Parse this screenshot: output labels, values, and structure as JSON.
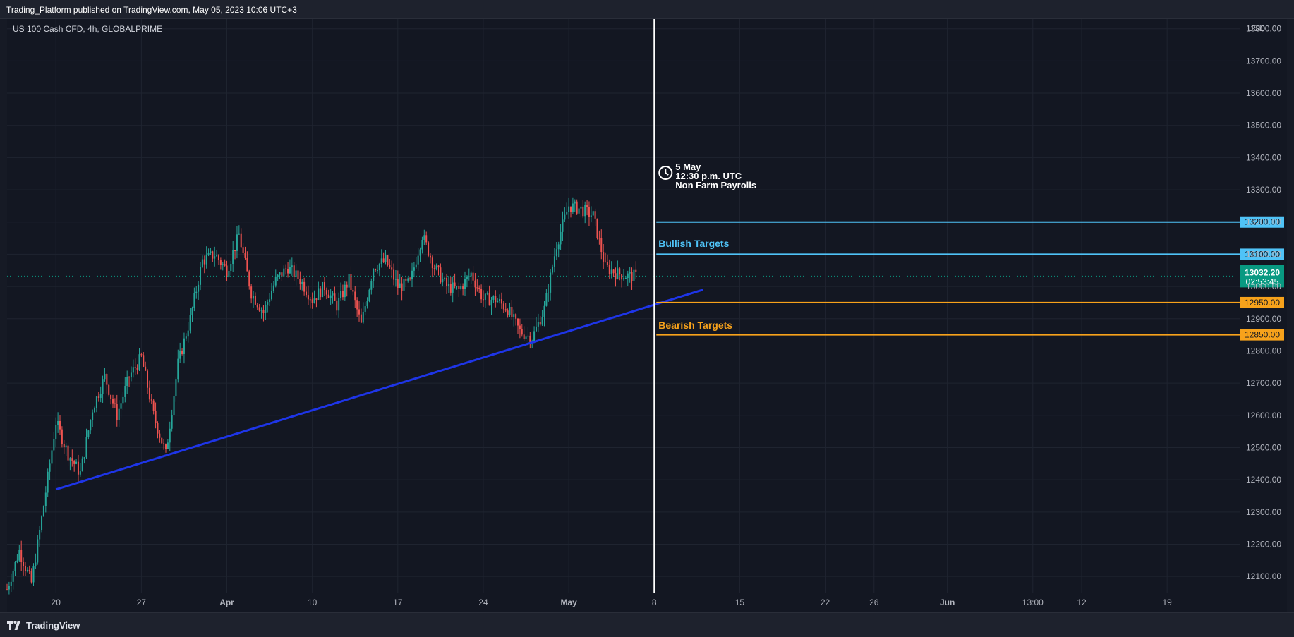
{
  "header": {
    "publisher_line": "Trading_Platform published on TradingView.com, May 05, 2023 10:06 UTC+3"
  },
  "footer": {
    "brand": "TradingView",
    "brand_icon": "tradingview-logo-icon"
  },
  "colors": {
    "background": "#131722",
    "up": "#26a69a",
    "down": "#ef5350",
    "trendline": "#1e35e8",
    "bullish": "#4fc3f7",
    "bearish": "#f7a21b",
    "last_price": "#089981",
    "event_line": "#ffffff"
  },
  "chart_data": {
    "type": "candlestick",
    "symbol": "US 100 Cash CFD, 4h, GLOBALPRIME",
    "currency": "USD",
    "y_axis": {
      "ticks": [
        12100,
        12200,
        12300,
        12400,
        12500,
        12600,
        12700,
        12800,
        12900,
        13000,
        13100,
        13200,
        13300,
        13400,
        13500,
        13600,
        13700,
        13800
      ],
      "tick_labels": [
        "12100.00",
        "12200.00",
        "12300.00",
        "12400.00",
        "12500.00",
        "12600.00",
        "12700.00",
        "12800.00",
        "12900.00",
        "13000.00",
        "13100.00",
        "13200.00",
        "13300.00",
        "13400.00",
        "13500.00",
        "13600.00",
        "13700.00",
        "13800.00"
      ],
      "range": [
        12050,
        13830
      ]
    },
    "x_axis": {
      "tick_labels": [
        "20",
        "27",
        "Apr",
        "10",
        "17",
        "24",
        "May",
        "8",
        "15",
        "22",
        "26",
        "Jun",
        "13:00",
        "12",
        "19"
      ],
      "bold_labels": [
        "Apr",
        "May",
        "Jun"
      ],
      "range_days": [
        "2023-03-16",
        "2023-06-25"
      ]
    },
    "ohlc_path": [
      [
        "2023-03-16",
        12060
      ],
      [
        "2023-03-17",
        12180
      ],
      [
        "2023-03-18",
        12080
      ],
      [
        "2023-03-19",
        12320
      ],
      [
        "2023-03-20",
        12580
      ],
      [
        "2023-03-21",
        12480
      ],
      [
        "2023-03-22",
        12420
      ],
      [
        "2023-03-23",
        12620
      ],
      [
        "2023-03-24",
        12720
      ],
      [
        "2023-03-25",
        12600
      ],
      [
        "2023-03-26",
        12720
      ],
      [
        "2023-03-27",
        12780
      ],
      [
        "2023-03-28",
        12600
      ],
      [
        "2023-03-29",
        12480
      ],
      [
        "2023-03-30",
        12760
      ],
      [
        "2023-03-31",
        12900
      ],
      [
        "2023-04-01",
        13080
      ],
      [
        "2023-04-02",
        13100
      ],
      [
        "2023-04-03",
        13050
      ],
      [
        "2023-04-04",
        13160
      ],
      [
        "2023-04-05",
        12980
      ],
      [
        "2023-04-06",
        12920
      ],
      [
        "2023-04-07",
        13020
      ],
      [
        "2023-04-08",
        13060
      ],
      [
        "2023-04-09",
        13020
      ],
      [
        "2023-04-10",
        12960
      ],
      [
        "2023-04-11",
        13000
      ],
      [
        "2023-04-12",
        12940
      ],
      [
        "2023-04-13",
        13020
      ],
      [
        "2023-04-14",
        12880
      ],
      [
        "2023-04-15",
        13060
      ],
      [
        "2023-04-16",
        13080
      ],
      [
        "2023-04-17",
        13000
      ],
      [
        "2023-04-18",
        13010
      ],
      [
        "2023-04-19",
        13160
      ],
      [
        "2023-04-20",
        13060
      ],
      [
        "2023-04-21",
        13000
      ],
      [
        "2023-04-22",
        12990
      ],
      [
        "2023-04-23",
        13040
      ],
      [
        "2023-04-24",
        12960
      ],
      [
        "2023-04-25",
        12960
      ],
      [
        "2023-04-26",
        12930
      ],
      [
        "2023-04-27",
        12860
      ],
      [
        "2023-04-28",
        12840
      ],
      [
        "2023-04-29",
        12930
      ],
      [
        "2023-04-30",
        13130
      ],
      [
        "2023-05-01",
        13250
      ],
      [
        "2023-05-02",
        13240
      ],
      [
        "2023-05-03",
        13220
      ],
      [
        "2023-05-04",
        13060
      ],
      [
        "2023-05-05",
        13040
      ],
      [
        "2023-05-06",
        13032
      ]
    ],
    "last_price": {
      "label": "13032.20",
      "countdown": "02:53:45",
      "value": 13032.2
    },
    "trendline": {
      "from": {
        "date": "2023-03-20",
        "price": 12370
      },
      "to": {
        "date": "2023-05-12",
        "price": 12990
      }
    },
    "event": {
      "date": "2023-05-08",
      "lines": [
        "5 May",
        "12:30 p.m. UTC",
        "Non Farm Payrolls"
      ],
      "icon": "clock-icon"
    },
    "targets": {
      "bullish_label": "Bullish Targets",
      "bearish_label": "Bearish Targets",
      "bullish_levels": [
        {
          "value": 13200,
          "label": "13200.00"
        },
        {
          "value": 13100,
          "label": "13100.00"
        }
      ],
      "bearish_levels": [
        {
          "value": 12950,
          "label": "12950.00"
        },
        {
          "value": 12850,
          "label": "12850.00"
        }
      ]
    },
    "grid": true,
    "title": "",
    "xlabel": "",
    "ylabel": ""
  }
}
